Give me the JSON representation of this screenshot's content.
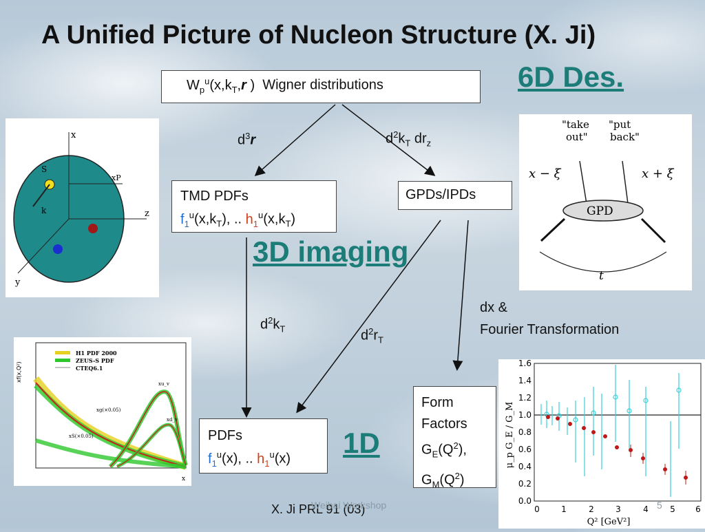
{
  "title": "A Unified Picture of Nucleon Structure (X. Ji)",
  "labels": {
    "six_d": "6D Des.",
    "three_d": "3D imaging",
    "one_d": "1D"
  },
  "boxes": {
    "wigner_suffix": "Wigner distributions",
    "tmd_heading": "TMD PDFs",
    "gpd_heading": "GPDs/IPDs",
    "pdf_heading": "PDFs",
    "ff_line1": "Form",
    "ff_line2": "Factors"
  },
  "arrows": {
    "dx_and": "dx &",
    "fourier": "Fourier Transformation"
  },
  "gpd_diagram": {
    "take_out": "\"take",
    "take_out2": "out\"",
    "put_back": "\"put",
    "put_back2": "back\"",
    "x_minus": "x − ξ",
    "x_plus": "x + ξ",
    "center": "GPD",
    "t": "t"
  },
  "sphere_diagram": {
    "x_axis": "x",
    "y_axis": "y",
    "z_axis": "z",
    "xP": "xP",
    "S": "S",
    "kT": "k"
  },
  "pdf_plot": {
    "legend": [
      "H1 PDF 2000",
      "ZEUS-S PDF",
      "CTEQ6.1"
    ],
    "ylabel": "xf(x,Q²)",
    "annotations": [
      "xu_v",
      "xd_v",
      "xg(×0.05)",
      "xS(×0.05)"
    ],
    "xlabel": "x"
  },
  "ff_plot": {
    "yticks": [
      "0.0",
      "0.2",
      "0.4",
      "0.6",
      "0.8",
      "1.0",
      "1.2",
      "1.4",
      "1.6"
    ],
    "xticks": [
      "0",
      "1",
      "2",
      "3",
      "4",
      "5",
      "6"
    ],
    "xlabel": "Q² [GeV²]",
    "ylabel": "μ_p G_E / G_M"
  },
  "footer": {
    "reference": "X. Ji PRL 91 (03)",
    "watermark": "Weihai Workshop",
    "page": "5"
  },
  "colors": {
    "teal": "#1b7c78",
    "blue": "#1a6fd6",
    "red": "#d0401a"
  }
}
